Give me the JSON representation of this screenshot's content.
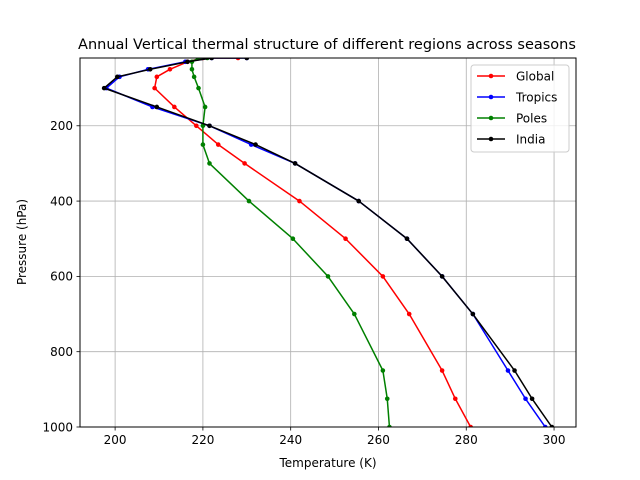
{
  "chart_data": {
    "type": "line",
    "title": "Annual Vertical thermal structure of different regions across seasons",
    "xlabel": "Temperature (K)",
    "ylabel": "Pressure (hPa)",
    "xlim": [
      192,
      305
    ],
    "ylim": [
      1000,
      20
    ],
    "y_inverted": true,
    "x_ticks": [
      200,
      220,
      240,
      260,
      280,
      300
    ],
    "y_ticks": [
      200,
      400,
      600,
      800,
      1000
    ],
    "grid": true,
    "legend_position": "top-right",
    "series": [
      {
        "name": "Global",
        "color": "#ff0000",
        "points": [
          {
            "x": 281,
            "y": 1000
          },
          {
            "x": 277.5,
            "y": 925
          },
          {
            "x": 274.5,
            "y": 850
          },
          {
            "x": 267,
            "y": 700
          },
          {
            "x": 261,
            "y": 600
          },
          {
            "x": 252.5,
            "y": 500
          },
          {
            "x": 242,
            "y": 400
          },
          {
            "x": 229.5,
            "y": 300
          },
          {
            "x": 223.5,
            "y": 250
          },
          {
            "x": 218.5,
            "y": 200
          },
          {
            "x": 213.5,
            "y": 150
          },
          {
            "x": 209,
            "y": 100
          },
          {
            "x": 209.5,
            "y": 70
          },
          {
            "x": 212.5,
            "y": 50
          },
          {
            "x": 216.5,
            "y": 30
          },
          {
            "x": 220,
            "y": 20
          },
          {
            "x": 228,
            "y": 20
          }
        ]
      },
      {
        "name": "Tropics",
        "color": "#0000ff",
        "points": [
          {
            "x": 298,
            "y": 1000
          },
          {
            "x": 293.5,
            "y": 925
          },
          {
            "x": 289.5,
            "y": 850
          },
          {
            "x": 281.5,
            "y": 700
          },
          {
            "x": 274.5,
            "y": 600
          },
          {
            "x": 266.5,
            "y": 500
          },
          {
            "x": 255.5,
            "y": 400
          },
          {
            "x": 241,
            "y": 300
          },
          {
            "x": 231,
            "y": 250
          },
          {
            "x": 221.5,
            "y": 200
          },
          {
            "x": 208.5,
            "y": 150
          },
          {
            "x": 198,
            "y": 100
          },
          {
            "x": 201,
            "y": 70
          },
          {
            "x": 207.5,
            "y": 50
          },
          {
            "x": 216,
            "y": 30
          },
          {
            "x": 222,
            "y": 20
          },
          {
            "x": 230,
            "y": 20
          }
        ]
      },
      {
        "name": "Poles",
        "color": "#008000",
        "points": [
          {
            "x": 262.5,
            "y": 1000
          },
          {
            "x": 262,
            "y": 925
          },
          {
            "x": 261,
            "y": 850
          },
          {
            "x": 254.5,
            "y": 700
          },
          {
            "x": 248.5,
            "y": 600
          },
          {
            "x": 240.5,
            "y": 500
          },
          {
            "x": 230.5,
            "y": 400
          },
          {
            "x": 221.5,
            "y": 300
          },
          {
            "x": 220,
            "y": 250
          },
          {
            "x": 220,
            "y": 200
          },
          {
            "x": 220.5,
            "y": 150
          },
          {
            "x": 219,
            "y": 100
          },
          {
            "x": 218,
            "y": 70
          },
          {
            "x": 217.5,
            "y": 50
          },
          {
            "x": 217.5,
            "y": 30
          },
          {
            "x": 219,
            "y": 20
          },
          {
            "x": 221,
            "y": 20
          }
        ]
      },
      {
        "name": "India",
        "color": "#000000",
        "points": [
          {
            "x": 299.5,
            "y": 1000
          },
          {
            "x": 295,
            "y": 925
          },
          {
            "x": 291,
            "y": 850
          },
          {
            "x": 281.5,
            "y": 700
          },
          {
            "x": 274.5,
            "y": 600
          },
          {
            "x": 266.5,
            "y": 500
          },
          {
            "x": 255.5,
            "y": 400
          },
          {
            "x": 241,
            "y": 300
          },
          {
            "x": 232,
            "y": 250
          },
          {
            "x": 221.5,
            "y": 200
          },
          {
            "x": 209.5,
            "y": 150
          },
          {
            "x": 197.5,
            "y": 100
          },
          {
            "x": 200.5,
            "y": 70
          },
          {
            "x": 208,
            "y": 50
          },
          {
            "x": 216.5,
            "y": 30
          },
          {
            "x": 222,
            "y": 20
          },
          {
            "x": 230,
            "y": 20
          }
        ]
      }
    ]
  }
}
